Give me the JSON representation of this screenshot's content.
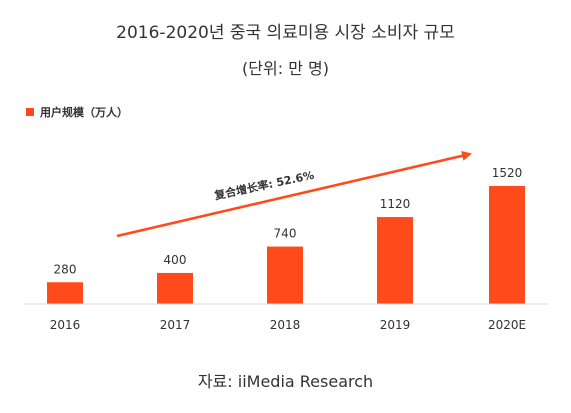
{
  "header": {
    "title": "2016-2020년 중국 의료미용 시장 소비자 규모",
    "subtitle": "(단위: 만 명)"
  },
  "legend": {
    "label": "用户规模（万人）"
  },
  "annotation": {
    "growth_label": "复合增长率: 52.6%"
  },
  "source": {
    "text": "자료: iiMedia Research"
  },
  "colors": {
    "bar": "#ff4a1c",
    "axis": "#d8d8d8",
    "arrow": "#ff4a1c"
  },
  "chart_data": {
    "type": "bar",
    "categories": [
      "2016",
      "2017",
      "2018",
      "2019",
      "2020E"
    ],
    "series": [
      {
        "name": "用户规模（万人）",
        "values": [
          280,
          400,
          740,
          1120,
          1520
        ]
      }
    ],
    "title": "2016-2020년 중국 의료미용 시장 소비자 규모",
    "subtitle": "(단위: 만 명)",
    "ylim": [
      0,
      1520
    ],
    "grid": false,
    "legend": "top-left",
    "annotations": [
      "复合增长率: 52.6%"
    ]
  }
}
